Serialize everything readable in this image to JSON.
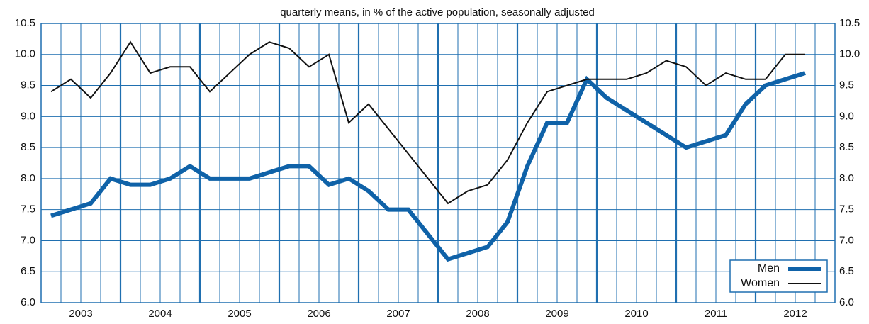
{
  "chart_data": {
    "type": "line",
    "subtitle": "quarterly means, in % of the active population, seasonally adjusted",
    "x": [
      2003.125,
      2003.375,
      2003.625,
      2003.875,
      2004.125,
      2004.375,
      2004.625,
      2004.875,
      2005.125,
      2005.375,
      2005.625,
      2005.875,
      2006.125,
      2006.375,
      2006.625,
      2006.875,
      2007.125,
      2007.375,
      2007.625,
      2007.875,
      2008.125,
      2008.375,
      2008.625,
      2008.875,
      2009.125,
      2009.375,
      2009.625,
      2009.875,
      2010.125,
      2010.375,
      2010.625,
      2010.875,
      2011.125,
      2011.375,
      2011.625,
      2011.875,
      2012.125,
      2012.375,
      2012.625
    ],
    "series": [
      {
        "name": "Men",
        "color": "#0f62a8",
        "values": [
          7.4,
          7.5,
          7.6,
          8.0,
          7.9,
          7.9,
          8.0,
          8.2,
          8.0,
          8.0,
          8.0,
          8.1,
          8.2,
          8.2,
          7.9,
          8.0,
          7.8,
          7.5,
          7.5,
          7.1,
          6.7,
          6.8,
          6.9,
          7.3,
          8.2,
          8.9,
          8.9,
          9.6,
          9.3,
          9.1,
          8.9,
          8.7,
          8.5,
          8.6,
          8.7,
          9.2,
          9.5,
          9.6,
          9.7
        ]
      },
      {
        "name": "Women",
        "color": "#111111",
        "values": [
          9.4,
          9.6,
          9.3,
          9.7,
          10.2,
          9.7,
          9.8,
          9.8,
          9.4,
          9.7,
          10.0,
          10.2,
          10.1,
          9.8,
          10.0,
          8.9,
          9.2,
          8.8,
          8.4,
          8.0,
          7.6,
          7.8,
          7.9,
          8.3,
          8.9,
          9.4,
          9.5,
          9.6,
          9.6,
          9.6,
          9.7,
          9.9,
          9.8,
          9.5,
          9.7,
          9.6,
          9.6,
          10.0,
          10.0
        ]
      }
    ],
    "xlim": [
      2003,
      2013
    ],
    "xticks": [
      {
        "value": 2003.5,
        "label": "2003"
      },
      {
        "value": 2004.5,
        "label": "2004"
      },
      {
        "value": 2005.5,
        "label": "2005"
      },
      {
        "value": 2006.5,
        "label": "2006"
      },
      {
        "value": 2007.5,
        "label": "2007"
      },
      {
        "value": 2008.5,
        "label": "2008"
      },
      {
        "value": 2009.5,
        "label": "2009"
      },
      {
        "value": 2010.5,
        "label": "2010"
      },
      {
        "value": 2011.5,
        "label": "2011"
      },
      {
        "value": 2012.5,
        "label": "2012"
      }
    ],
    "ylim": [
      6,
      10.5
    ],
    "yticks": [
      {
        "value": 6,
        "label": "6.0"
      },
      {
        "value": 6.5,
        "label": "6.5"
      },
      {
        "value": 7,
        "label": "7.0"
      },
      {
        "value": 7.5,
        "label": "7.5"
      },
      {
        "value": 8,
        "label": "8.0"
      },
      {
        "value": 8.5,
        "label": "8.5"
      },
      {
        "value": 9,
        "label": "9.0"
      },
      {
        "value": 9.5,
        "label": "9.5"
      },
      {
        "value": 10,
        "label": "10.0"
      },
      {
        "value": 10.5,
        "label": "10.5"
      }
    ],
    "grid": true,
    "grid_color": "#1f6fb0",
    "legend": "lower right"
  }
}
